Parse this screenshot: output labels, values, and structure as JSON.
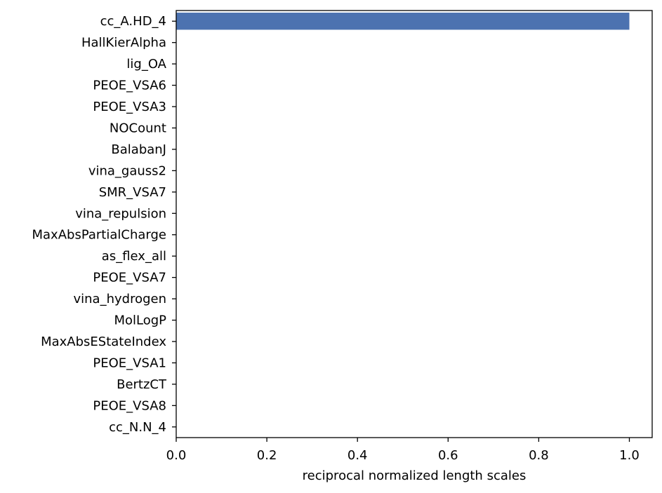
{
  "chart_data": {
    "type": "bar",
    "orientation": "horizontal",
    "title": "",
    "xlabel": "reciprocal normalized length scales",
    "ylabel": "",
    "xlim": [
      0,
      1.05
    ],
    "xticks": [
      "0.0",
      "0.2",
      "0.4",
      "0.6",
      "0.8",
      "1.0"
    ],
    "xtick_values": [
      0.0,
      0.2,
      0.4,
      0.6,
      0.8,
      1.0
    ],
    "categories": [
      "cc_A.HD_4",
      "HallKierAlpha",
      "lig_OA",
      "PEOE_VSA6",
      "PEOE_VSA3",
      "NOCount",
      "BalabanJ",
      "vina_gauss2",
      "SMR_VSA7",
      "vina_repulsion",
      "MaxAbsPartialCharge",
      "as_flex_all",
      "PEOE_VSA7",
      "vina_hydrogen",
      "MolLogP",
      "MaxAbsEStateIndex",
      "PEOE_VSA1",
      "BertzCT",
      "PEOE_VSA8",
      "cc_N.N_4"
    ],
    "values": [
      1.0,
      0,
      0,
      0,
      0,
      0,
      0,
      0,
      0,
      0,
      0,
      0,
      0,
      0,
      0,
      0,
      0,
      0,
      0,
      0
    ],
    "bar_color": "#4c72b0",
    "grid": false,
    "legend": "none"
  }
}
